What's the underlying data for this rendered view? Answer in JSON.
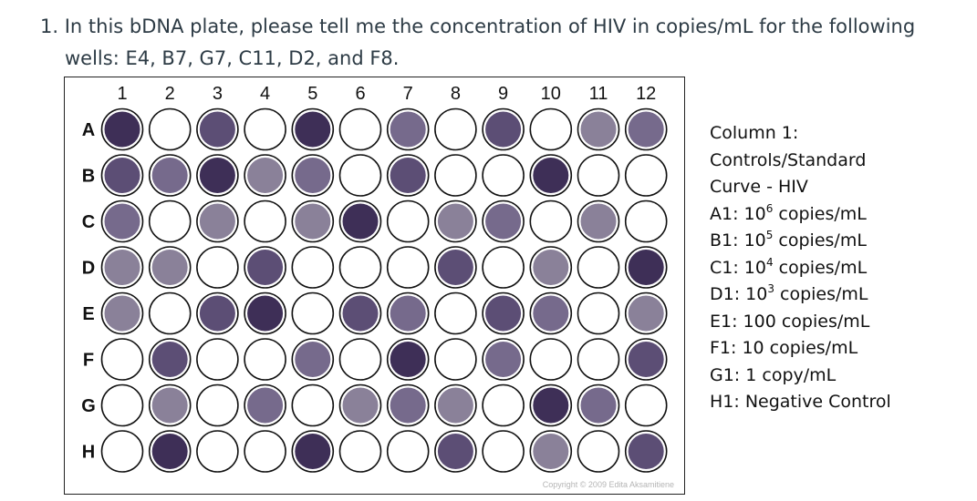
{
  "question": {
    "number": "1.",
    "line1": "In this bDNA plate, please tell me the concentration of HIV in copies/mL for the following",
    "line2": "wells: E4, B7, G7, C11, D2, and F8."
  },
  "plate": {
    "columns": [
      "1",
      "2",
      "3",
      "4",
      "5",
      "6",
      "7",
      "8",
      "9",
      "10",
      "11",
      "12"
    ],
    "rows": [
      "A",
      "B",
      "C",
      "D",
      "E",
      "F",
      "G",
      "H"
    ],
    "copyright": "Copyright © 2009 Edita Aksamitiene",
    "colors": {
      "0": "#ffffff",
      "1": "#8a8199",
      "2": "#766a8c",
      "3": "#5c4e75",
      "4": "#3e2f57"
    },
    "wells": [
      [
        4,
        0,
        3,
        0,
        4,
        0,
        2,
        0,
        3,
        0,
        1,
        2
      ],
      [
        3,
        2,
        4,
        1,
        2,
        0,
        3,
        0,
        0,
        4,
        0,
        0
      ],
      [
        2,
        0,
        1,
        0,
        1,
        4,
        0,
        1,
        2,
        0,
        1,
        0
      ],
      [
        1,
        1,
        0,
        3,
        0,
        0,
        0,
        3,
        0,
        1,
        0,
        4
      ],
      [
        1,
        0,
        3,
        4,
        0,
        3,
        2,
        0,
        3,
        2,
        0,
        1
      ],
      [
        0,
        3,
        0,
        0,
        2,
        0,
        4,
        0,
        2,
        0,
        0,
        3
      ],
      [
        0,
        1,
        0,
        2,
        0,
        1,
        2,
        1,
        0,
        4,
        2,
        0
      ],
      [
        0,
        4,
        0,
        0,
        4,
        0,
        0,
        3,
        0,
        1,
        0,
        3
      ]
    ]
  },
  "legend": {
    "lines": [
      {
        "text": "Column 1:"
      },
      {
        "text": "Controls/Standard"
      },
      {
        "text": "Curve - HIV"
      },
      {
        "text": "A1: 10",
        "sup": "6",
        "tail": " copies/mL"
      },
      {
        "text": "B1: 10",
        "sup": "5",
        "tail": " copies/mL"
      },
      {
        "text": "C1: 10",
        "sup": "4",
        "tail": " copies/mL"
      },
      {
        "text": "D1: 10",
        "sup": "3",
        "tail": " copies/mL"
      },
      {
        "text": "E1: 100 copies/mL"
      },
      {
        "text": "F1: 10 copies/mL"
      },
      {
        "text": "G1: 1 copy/mL"
      },
      {
        "text": "H1: Negative Control"
      }
    ]
  }
}
